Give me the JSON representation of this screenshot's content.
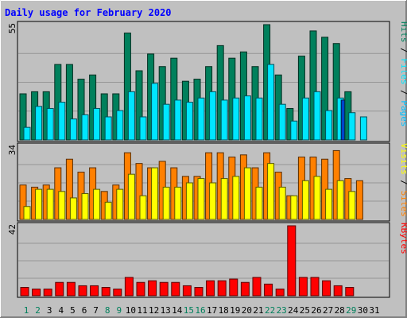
{
  "title": "Daily usage for February 2020",
  "colors": {
    "page_bg": "#c0c0c0",
    "panel_bg": "#c0c0c0",
    "gridline": "#969696",
    "title": "#0000ff",
    "hits": "#00805c",
    "files": "#00e6ff",
    "pages": "#00c0ff",
    "visits": "#ffff00",
    "sites": "#ff8000",
    "kbytes": "#ff0000",
    "weekend_day": "#00805c",
    "weekday": "#000000",
    "highlight_bar": "#0044cc"
  },
  "chart_data": [
    {
      "type": "bar",
      "panel": "top",
      "scale_max_label": "55",
      "ylim": [
        0,
        55
      ],
      "grid": true,
      "legend_placement": "right-vertical",
      "legend": [
        {
          "text": "Pages",
          "color_key": "pages"
        },
        {
          "text": "Files",
          "color_key": "files"
        },
        {
          "text": "Hits",
          "color_key": "hits"
        }
      ],
      "legend_separator": " / ",
      "categories": [
        "1",
        "2",
        "3",
        "4",
        "5",
        "6",
        "7",
        "8",
        "9",
        "10",
        "11",
        "12",
        "13",
        "14",
        "15",
        "16",
        "17",
        "18",
        "19",
        "20",
        "21",
        "22",
        "23",
        "24",
        "25",
        "26",
        "27",
        "28",
        "29",
        "30",
        "31"
      ],
      "series": [
        {
          "name": "Hits",
          "color_key": "hits",
          "values": [
            22,
            23,
            23,
            36,
            36,
            29,
            31,
            22,
            22,
            51,
            33,
            41,
            35,
            39,
            28,
            29,
            35,
            45,
            39,
            42,
            35,
            55,
            31,
            15,
            40,
            52,
            49,
            46,
            23,
            0,
            0
          ]
        },
        {
          "name": "Files",
          "color_key": "files",
          "values": [
            6,
            16,
            15,
            18,
            10,
            12,
            15,
            11,
            14,
            23,
            11,
            27,
            17,
            19,
            18,
            20,
            23,
            19,
            20,
            21,
            20,
            36,
            17,
            9,
            20,
            23,
            14,
            20,
            13,
            11,
            0
          ]
        },
        {
          "name": "Pages",
          "color_key": "pages",
          "values": [
            0,
            0,
            0,
            0,
            0,
            0,
            0,
            0,
            0,
            0,
            0,
            0,
            0,
            0,
            0,
            0,
            0,
            0,
            0,
            0,
            0,
            0,
            0,
            0,
            0,
            0,
            0,
            19,
            0,
            0,
            0
          ]
        }
      ]
    },
    {
      "type": "bar",
      "panel": "middle",
      "scale_max_label": "34",
      "ylim": [
        0,
        34
      ],
      "grid": true,
      "legend_placement": "right-vertical",
      "legend": [
        {
          "text": "Sites",
          "color_key": "sites"
        },
        {
          "text": "Visits",
          "color_key": "visits"
        }
      ],
      "legend_separator": " / ",
      "categories": [
        "1",
        "2",
        "3",
        "4",
        "5",
        "6",
        "7",
        "8",
        "9",
        "10",
        "11",
        "12",
        "13",
        "14",
        "15",
        "16",
        "17",
        "18",
        "19",
        "20",
        "21",
        "22",
        "23",
        "24",
        "25",
        "26",
        "27",
        "28",
        "29",
        "30",
        "31"
      ],
      "series": [
        {
          "name": "Sites",
          "color_key": "sites",
          "values": [
            16,
            15,
            16,
            24,
            28,
            22,
            24,
            13,
            16,
            31,
            26,
            24,
            27,
            24,
            20,
            20,
            31,
            31,
            29,
            30,
            24,
            31,
            22,
            11,
            29,
            29,
            28,
            32,
            19,
            18,
            0
          ]
        },
        {
          "name": "Visits",
          "color_key": "visits",
          "values": [
            6,
            14,
            14,
            13,
            10,
            12,
            14,
            8,
            14,
            21,
            11,
            24,
            15,
            15,
            17,
            19,
            17,
            19,
            20,
            24,
            15,
            26,
            15,
            11,
            18,
            20,
            14,
            18,
            13,
            0,
            0
          ]
        }
      ]
    },
    {
      "type": "bar",
      "panel": "bottom",
      "scale_max_label": "42",
      "ylim": [
        0,
        42
      ],
      "grid": true,
      "legend_placement": "right-vertical",
      "legend": [
        {
          "text": "KBytes",
          "color_key": "kbytes"
        }
      ],
      "categories": [
        "1",
        "2",
        "3",
        "4",
        "5",
        "6",
        "7",
        "8",
        "9",
        "10",
        "11",
        "12",
        "13",
        "14",
        "15",
        "16",
        "17",
        "18",
        "19",
        "20",
        "21",
        "22",
        "23",
        "24",
        "25",
        "26",
        "27",
        "28",
        "29",
        "30",
        "31"
      ],
      "series": [
        {
          "name": "KBytes",
          "color_key": "kbytes",
          "values": [
            5,
            4,
            4,
            8,
            8,
            6,
            6,
            5,
            4,
            11,
            8,
            9,
            8,
            8,
            6,
            5,
            9,
            9,
            10,
            8,
            11,
            7,
            4,
            42,
            11,
            11,
            9,
            6,
            5,
            0,
            0
          ]
        }
      ]
    }
  ],
  "x_axis": {
    "labels": [
      "1",
      "2",
      "3",
      "4",
      "5",
      "6",
      "7",
      "8",
      "9",
      "10",
      "11",
      "12",
      "13",
      "14",
      "15",
      "16",
      "17",
      "18",
      "19",
      "20",
      "21",
      "22",
      "23",
      "24",
      "25",
      "26",
      "27",
      "28",
      "29",
      "30",
      "31"
    ],
    "weekend_days": [
      "1",
      "2",
      "8",
      "9",
      "15",
      "16",
      "22",
      "23",
      "29"
    ]
  }
}
